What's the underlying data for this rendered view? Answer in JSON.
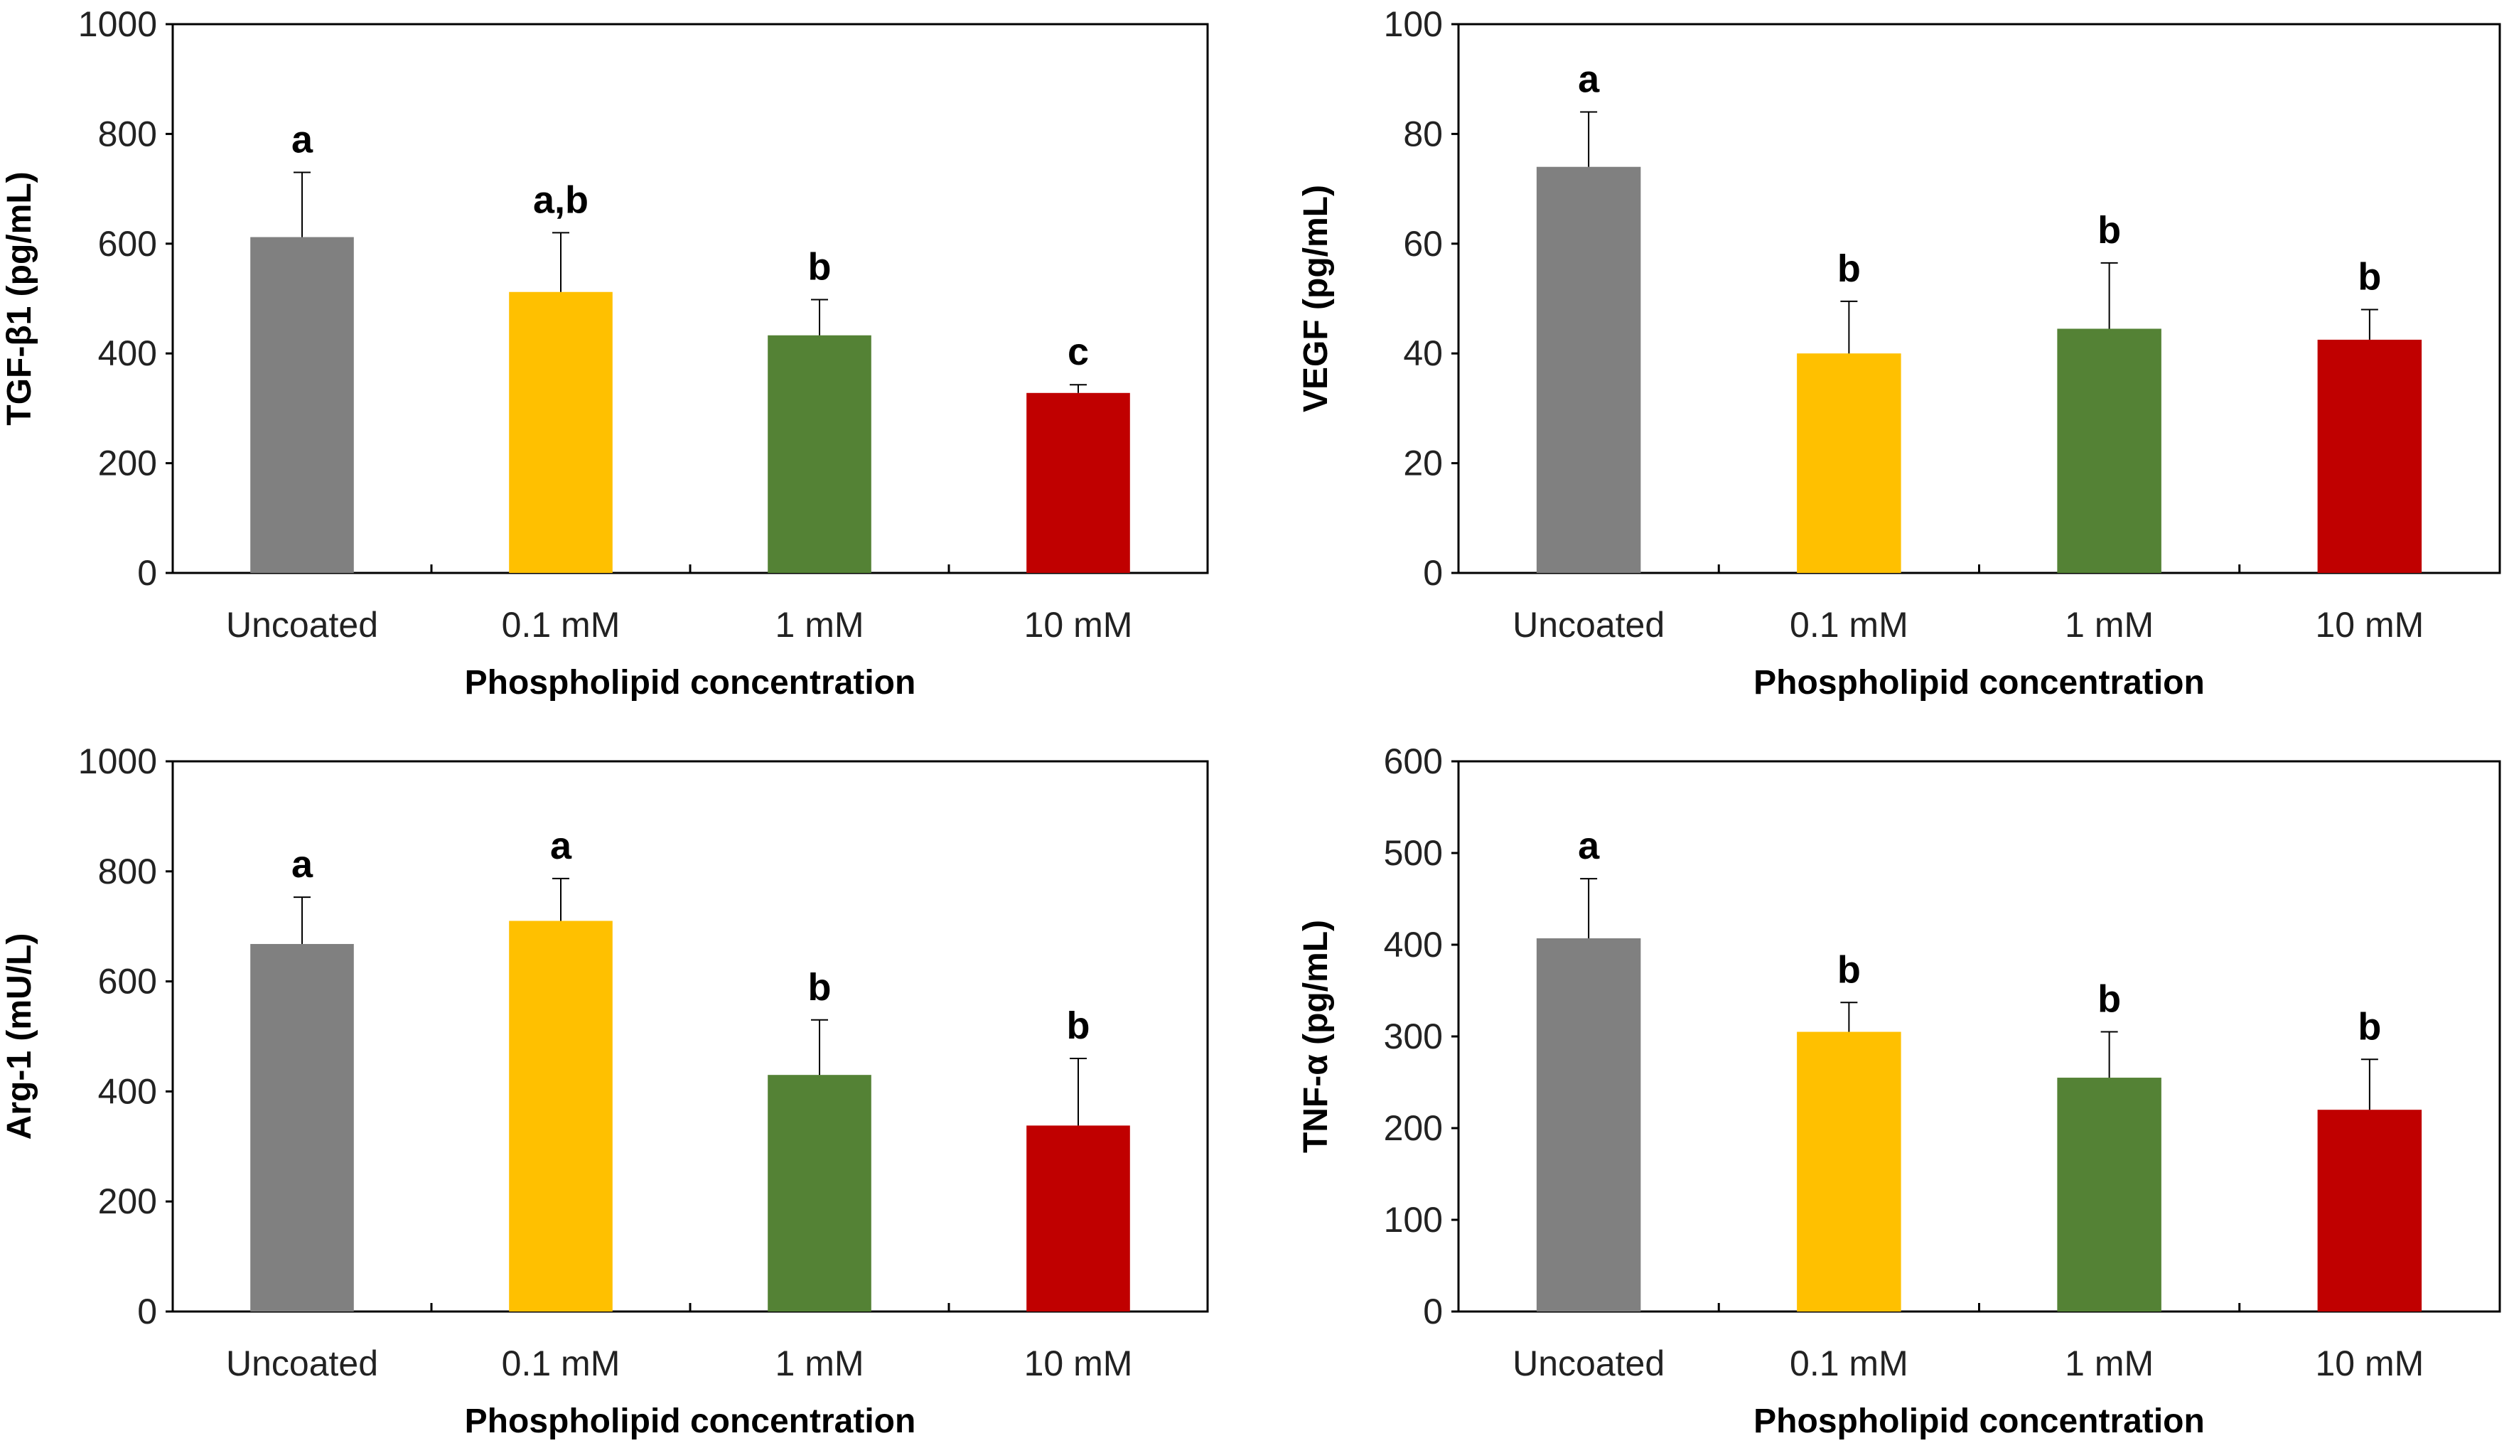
{
  "chart_data": [
    {
      "type": "bar",
      "ylabel": "TGF-β1 (pg/mL)",
      "xlabel": "Phospholipid concentration",
      "categories": [
        "Uncoated",
        "0.1 mM",
        "1 mM",
        "10 mM"
      ],
      "values": [
        612,
        512,
        433,
        328
      ],
      "errors": [
        118,
        108,
        65,
        15
      ],
      "significance": [
        "a",
        "a,b",
        "b",
        "c"
      ],
      "ylim": [
        0,
        1000
      ],
      "yticks": [
        0,
        200,
        400,
        600,
        800,
        1000
      ]
    },
    {
      "type": "bar",
      "ylabel": "VEGF (pg/mL)",
      "xlabel": "Phospholipid concentration",
      "categories": [
        "Uncoated",
        "0.1 mM",
        "1 mM",
        "10 mM"
      ],
      "values": [
        74,
        40,
        44.5,
        42.5
      ],
      "errors": [
        10,
        9.5,
        12,
        5.5
      ],
      "significance": [
        "a",
        "b",
        "b",
        "b"
      ],
      "ylim": [
        0,
        100
      ],
      "yticks": [
        0,
        20,
        40,
        60,
        80,
        100
      ]
    },
    {
      "type": "bar",
      "ylabel": "Arg-1 (mU/L)",
      "xlabel": "Phospholipid concentration",
      "categories": [
        "Uncoated",
        "0.1 mM",
        "1 mM",
        "10 mM"
      ],
      "values": [
        668,
        710,
        430,
        338
      ],
      "errors": [
        85,
        77,
        100,
        122
      ],
      "significance": [
        "a",
        "a",
        "b",
        "b"
      ],
      "ylim": [
        0,
        1000
      ],
      "yticks": [
        0,
        200,
        400,
        600,
        800,
        1000
      ]
    },
    {
      "type": "bar",
      "ylabel": "TNF-α (pg/mL)",
      "xlabel": "Phospholipid concentration",
      "categories": [
        "Uncoated",
        "0.1 mM",
        "1 mM",
        "10 mM"
      ],
      "values": [
        407,
        305,
        255,
        220
      ],
      "errors": [
        65,
        32,
        50,
        55
      ],
      "significance": [
        "a",
        "b",
        "b",
        "b"
      ],
      "ylim": [
        0,
        600
      ],
      "yticks": [
        0,
        100,
        200,
        300,
        400,
        500,
        600
      ]
    }
  ],
  "colors": [
    "#808080",
    "#FFC000",
    "#548235",
    "#C00000"
  ]
}
